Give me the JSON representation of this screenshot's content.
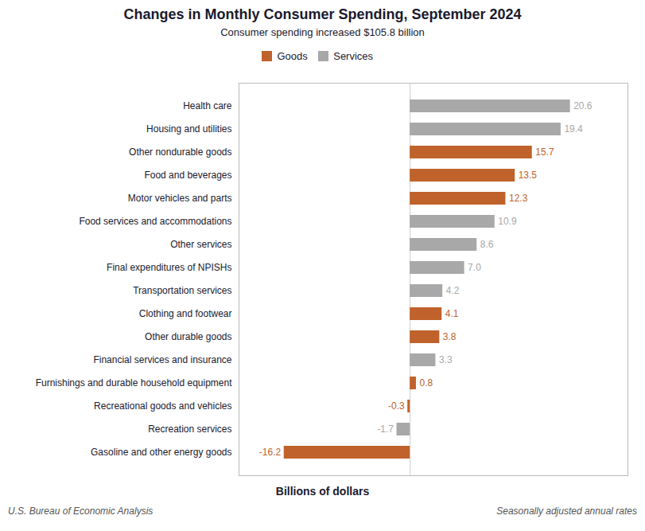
{
  "chart_data": {
    "type": "bar",
    "orientation": "horizontal",
    "title": "Changes in Monthly Consumer Spending, September 2024",
    "subtitle": "Consumer spending increased $105.8 billion",
    "xlabel": "Billions of dollars",
    "annotations": [
      "U.S. Bureau of Economic Analysis",
      "Seasonally adjusted annual rates"
    ],
    "categories": [
      "Health care",
      "Housing and utilities",
      "Other nondurable goods",
      "Food and beverages",
      "Motor vehicles and parts",
      "Food services and accommodations",
      "Other services",
      "Final expenditures of NPISHs",
      "Transportation services",
      "Clothing and footwear",
      "Other durable goods",
      "Financial services and insurance",
      "Furnishings and durable household equipment",
      "Recreational goods and vehicles",
      "Recreation services",
      "Gasoline and other energy goods"
    ],
    "series": [
      {
        "name": "Goods",
        "color": "#C0622B",
        "values": [
          null,
          null,
          15.7,
          13.5,
          12.3,
          null,
          null,
          null,
          null,
          4.1,
          3.8,
          null,
          0.8,
          -0.3,
          null,
          -16.2
        ],
        "value_labels": [
          null,
          null,
          "15.7",
          "13.5",
          "12.3",
          null,
          null,
          null,
          null,
          "4.1",
          "3.8",
          null,
          "0.8",
          "-0.3",
          null,
          "-16.2"
        ]
      },
      {
        "name": "Services",
        "color": "#A8A8A8",
        "values": [
          20.6,
          19.4,
          null,
          null,
          null,
          10.9,
          8.6,
          7.0,
          4.2,
          null,
          null,
          3.3,
          null,
          null,
          -1.7,
          null
        ],
        "value_labels": [
          "20.6",
          "19.4",
          null,
          null,
          null,
          "10.9",
          "8.6",
          "7.0",
          "4.2",
          null,
          null,
          "3.3",
          null,
          null,
          "-1.7",
          null
        ]
      }
    ],
    "xlim": [
      -22,
      28
    ],
    "xticks": [],
    "grid": false,
    "legend": "top",
    "data_labels": true,
    "tick_labels": "y"
  }
}
